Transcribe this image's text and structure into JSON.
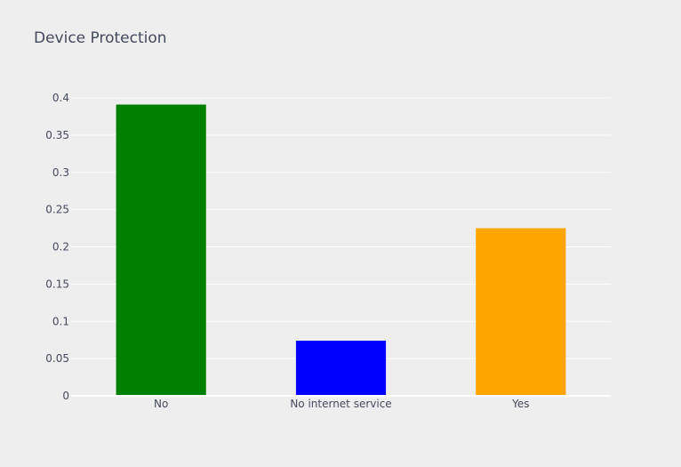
{
  "chart_data": {
    "type": "bar",
    "title": "Device Protection",
    "xlabel": "",
    "ylabel": "",
    "categories": [
      "No",
      "No internet service",
      "Yes"
    ],
    "values": [
      0.391,
      0.074,
      0.225
    ],
    "colors": [
      "#008000",
      "#0000ff",
      "#ffa500"
    ],
    "ylim": [
      0,
      0.4
    ],
    "yticks": [
      0,
      0.05,
      0.1,
      0.15,
      0.2,
      0.25,
      0.3,
      0.35,
      0.4
    ],
    "ytick_labels": [
      "0",
      "0.05",
      "0.1",
      "0.15",
      "0.2",
      "0.25",
      "0.3",
      "0.35",
      "0.4"
    ],
    "grid": true,
    "legend": "none"
  }
}
